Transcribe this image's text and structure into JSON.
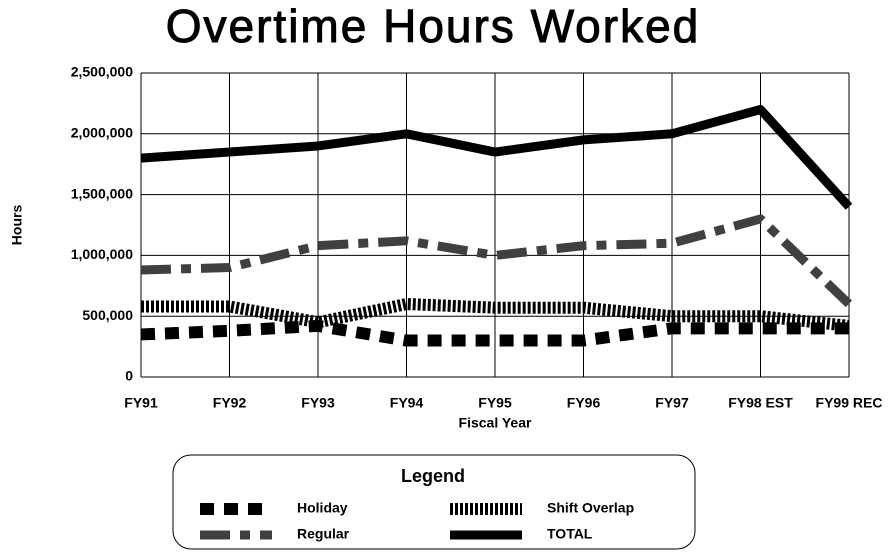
{
  "chart_data": {
    "type": "line",
    "title": "Overtime Hours Worked",
    "x_label": "Fiscal Year",
    "y_label": "Hours",
    "categories": [
      "FY91",
      "FY92",
      "FY93",
      "FY94",
      "FY95",
      "FY96",
      "FY97",
      "FY98 EST",
      "FY99 REC"
    ],
    "series": [
      {
        "name": "Holiday",
        "color": "#000000",
        "values": [
          350000,
          380000,
          420000,
          300000,
          300000,
          300000,
          400000,
          400000,
          400000
        ]
      },
      {
        "name": "Regular",
        "color": "#404040",
        "values": [
          880000,
          900000,
          1080000,
          1120000,
          1000000,
          1080000,
          1100000,
          1300000,
          600000
        ]
      },
      {
        "name": "Shift Overlap",
        "color": "#000000",
        "values": [
          580000,
          580000,
          450000,
          600000,
          570000,
          570000,
          500000,
          500000,
          420000
        ]
      },
      {
        "name": "TOTAL",
        "color": "#000000",
        "values": [
          1800000,
          1850000,
          1900000,
          2000000,
          1850000,
          1950000,
          2000000,
          2200000,
          1400000
        ]
      }
    ],
    "ylim": [
      0,
      2500000
    ],
    "yticks": [
      0,
      {
        "value": 500000,
        "label": "500,000"
      },
      {
        "value": 1000000,
        "label": "1,000,000"
      },
      {
        "value": 1500000,
        "label": "1,500,000"
      },
      {
        "value": 2000000,
        "label": "2,000,000"
      },
      {
        "value": 2500000,
        "label": "2,500,000"
      }
    ],
    "grid": true,
    "legend_title": "Legend"
  }
}
